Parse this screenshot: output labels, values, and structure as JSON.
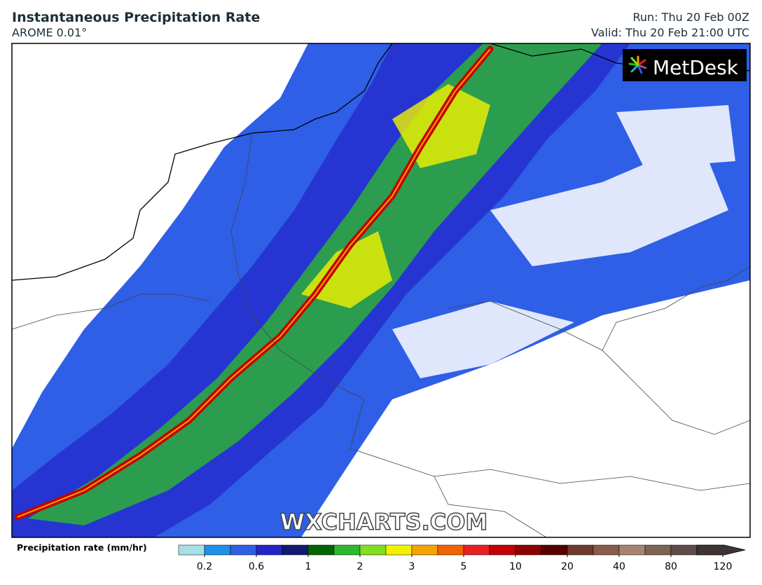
{
  "header": {
    "title": "Instantaneous Precipitation Rate",
    "model": "AROME 0.01°",
    "run": "Run: Thu 20 Feb 00Z",
    "valid": "Valid: Thu 20 Feb 21:00 UTC"
  },
  "logo": "MetDesk",
  "watermark": "WXCHARTS.COM",
  "colorbar": {
    "label": "Precipitation rate (mm/hr)",
    "colors": [
      "#a6dfe6",
      "#1f8fe8",
      "#2e5fe6",
      "#2424c8",
      "#121a6e",
      "#006400",
      "#2eb82e",
      "#80e020",
      "#f2f200",
      "#f5a300",
      "#f26200",
      "#e82020",
      "#c40000",
      "#8c0000",
      "#560000",
      "#6e3a2c",
      "#8c5a48",
      "#a88470",
      "#7e6254",
      "#5e4c48",
      "#3e3434"
    ],
    "ticks": [
      0.2,
      0.6,
      1,
      2,
      3,
      5,
      10,
      20,
      40,
      80,
      120
    ]
  }
}
